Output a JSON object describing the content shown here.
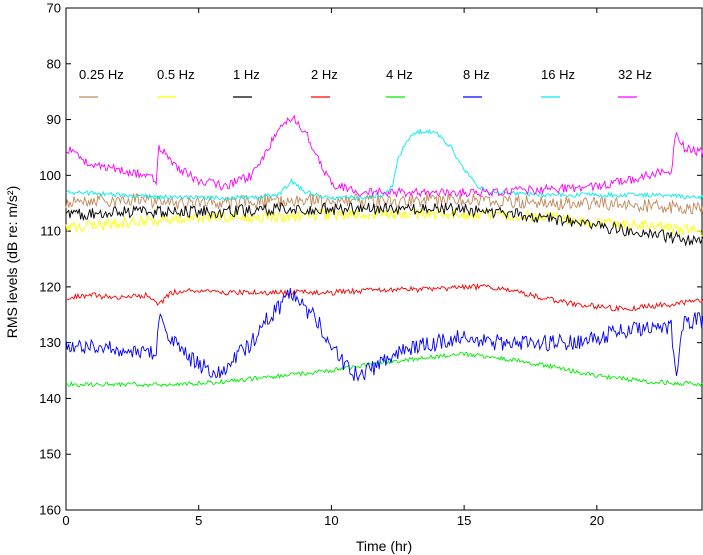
{
  "chart_data": {
    "type": "line",
    "xlabel": "Time (hr)",
    "ylabel": "RMS levels (dB re: m/s²)",
    "xlim": [
      0,
      24
    ],
    "ylim": [
      70,
      160
    ],
    "y_inverted": true,
    "x_ticks": [
      0,
      5,
      10,
      15,
      20
    ],
    "y_ticks": [
      70,
      80,
      90,
      100,
      110,
      120,
      130,
      140,
      150,
      160
    ],
    "grid": false,
    "legend_position": "top, single row",
    "series": [
      {
        "name": "0.25 Hz",
        "color": "#c08a5a",
        "noise": 1.2,
        "points": [
          [
            0,
            105
          ],
          [
            1,
            104.5
          ],
          [
            2,
            104.5
          ],
          [
            3,
            104.5
          ],
          [
            4,
            105
          ],
          [
            5,
            105
          ],
          [
            6,
            105
          ],
          [
            8,
            104.5
          ],
          [
            10,
            104.5
          ],
          [
            12,
            104.5
          ],
          [
            14,
            104.5
          ],
          [
            16,
            104.5
          ],
          [
            18,
            105
          ],
          [
            20,
            105
          ],
          [
            22,
            105.5
          ],
          [
            24,
            106
          ]
        ]
      },
      {
        "name": "0.5 Hz",
        "color": "#ffff00",
        "noise": 1.0,
        "points": [
          [
            0,
            109.5
          ],
          [
            2,
            108.5
          ],
          [
            4,
            108
          ],
          [
            6,
            107.5
          ],
          [
            8,
            107.5
          ],
          [
            10,
            107
          ],
          [
            12,
            107
          ],
          [
            14,
            107
          ],
          [
            16,
            107
          ],
          [
            18,
            107.5
          ],
          [
            20,
            108.5
          ],
          [
            22,
            109
          ],
          [
            24,
            110
          ]
        ]
      },
      {
        "name": "1 Hz",
        "color": "#000000",
        "noise": 1.1,
        "points": [
          [
            0,
            107
          ],
          [
            2,
            106.5
          ],
          [
            4,
            106.5
          ],
          [
            6,
            106.5
          ],
          [
            8,
            106
          ],
          [
            10,
            106
          ],
          [
            12,
            106
          ],
          [
            14,
            106
          ],
          [
            16,
            106.5
          ],
          [
            18,
            107.5
          ],
          [
            20,
            109
          ],
          [
            22,
            110.5
          ],
          [
            24,
            112
          ]
        ]
      },
      {
        "name": "2 Hz",
        "color": "#ff0000",
        "noise": 0.5,
        "points": [
          [
            0,
            122
          ],
          [
            1,
            121.5
          ],
          [
            2,
            122
          ],
          [
            3,
            121.5
          ],
          [
            3.5,
            123
          ],
          [
            4,
            121
          ],
          [
            5,
            120.5
          ],
          [
            6,
            121
          ],
          [
            7,
            121
          ],
          [
            8,
            121
          ],
          [
            9,
            121
          ],
          [
            10,
            121
          ],
          [
            12,
            120.5
          ],
          [
            14,
            120.5
          ],
          [
            15,
            120
          ],
          [
            16,
            120
          ],
          [
            17,
            121
          ],
          [
            18,
            122
          ],
          [
            19,
            123
          ],
          [
            20,
            123.5
          ],
          [
            21,
            124
          ],
          [
            22,
            123.5
          ],
          [
            23,
            123
          ],
          [
            24,
            122.5
          ]
        ]
      },
      {
        "name": "4 Hz",
        "color": "#00ee00",
        "noise": 0.4,
        "points": [
          [
            0,
            137.5
          ],
          [
            2,
            137.5
          ],
          [
            4,
            137.5
          ],
          [
            6,
            137
          ],
          [
            8,
            136
          ],
          [
            10,
            135
          ],
          [
            12,
            133.5
          ],
          [
            14,
            132.5
          ],
          [
            15,
            132
          ],
          [
            16,
            132.5
          ],
          [
            18,
            134
          ],
          [
            20,
            136
          ],
          [
            22,
            137
          ],
          [
            24,
            137.5
          ]
        ]
      },
      {
        "name": "8 Hz",
        "color": "#0000ff",
        "noise": 1.5,
        "points": [
          [
            0,
            130
          ],
          [
            1,
            131
          ],
          [
            2,
            131
          ],
          [
            3,
            131.5
          ],
          [
            3.4,
            132
          ],
          [
            3.5,
            125
          ],
          [
            4,
            130
          ],
          [
            5,
            134
          ],
          [
            5.5,
            135
          ],
          [
            6,
            135
          ],
          [
            6.5,
            132
          ],
          [
            7,
            130
          ],
          [
            7.5,
            126
          ],
          [
            8,
            124
          ],
          [
            8.5,
            121
          ],
          [
            9,
            124
          ],
          [
            9.5,
            126
          ],
          [
            10,
            131
          ],
          [
            10.5,
            134
          ],
          [
            11,
            136
          ],
          [
            11.5,
            135
          ],
          [
            12,
            133
          ],
          [
            13,
            131
          ],
          [
            14,
            130
          ],
          [
            15,
            129
          ],
          [
            16,
            130
          ],
          [
            17,
            130
          ],
          [
            18,
            130
          ],
          [
            19,
            130
          ],
          [
            20,
            129
          ],
          [
            21,
            128
          ],
          [
            22,
            127
          ],
          [
            22.8,
            127
          ],
          [
            23,
            136
          ],
          [
            23.3,
            126
          ],
          [
            24,
            126
          ]
        ]
      },
      {
        "name": "16 Hz",
        "color": "#00eeee",
        "noise": 0.4,
        "points": [
          [
            0,
            103
          ],
          [
            2,
            103.5
          ],
          [
            4,
            104
          ],
          [
            6,
            104
          ],
          [
            7,
            104
          ],
          [
            8,
            103.5
          ],
          [
            8.5,
            101
          ],
          [
            9,
            103
          ],
          [
            10,
            104
          ],
          [
            11,
            104
          ],
          [
            12,
            103.5
          ],
          [
            12.3,
            102
          ],
          [
            12.5,
            97
          ],
          [
            13,
            92.5
          ],
          [
            13.5,
            92
          ],
          [
            14,
            92.5
          ],
          [
            14.5,
            95
          ],
          [
            15,
            99
          ],
          [
            15.5,
            102
          ],
          [
            16,
            103
          ],
          [
            18,
            103.5
          ],
          [
            20,
            103.5
          ],
          [
            22,
            103.5
          ],
          [
            24,
            104
          ]
        ]
      },
      {
        "name": "32 Hz",
        "color": "#ff00ff",
        "noise": 0.8,
        "points": [
          [
            0,
            95
          ],
          [
            0.5,
            97
          ],
          [
            1,
            98
          ],
          [
            2,
            99
          ],
          [
            3,
            100
          ],
          [
            3.4,
            101
          ],
          [
            3.5,
            95
          ],
          [
            3.7,
            96
          ],
          [
            4,
            98
          ],
          [
            5,
            101
          ],
          [
            6,
            102
          ],
          [
            7,
            100
          ],
          [
            7.5,
            96
          ],
          [
            8,
            92
          ],
          [
            8.5,
            89.5
          ],
          [
            9,
            92
          ],
          [
            9.5,
            97
          ],
          [
            10,
            101.5
          ],
          [
            11,
            103
          ],
          [
            12,
            103
          ],
          [
            14,
            103
          ],
          [
            16,
            103
          ],
          [
            18,
            102.5
          ],
          [
            20,
            102
          ],
          [
            22,
            100
          ],
          [
            22.8,
            99
          ],
          [
            23,
            92
          ],
          [
            23.3,
            95
          ],
          [
            24,
            96
          ]
        ]
      }
    ]
  }
}
